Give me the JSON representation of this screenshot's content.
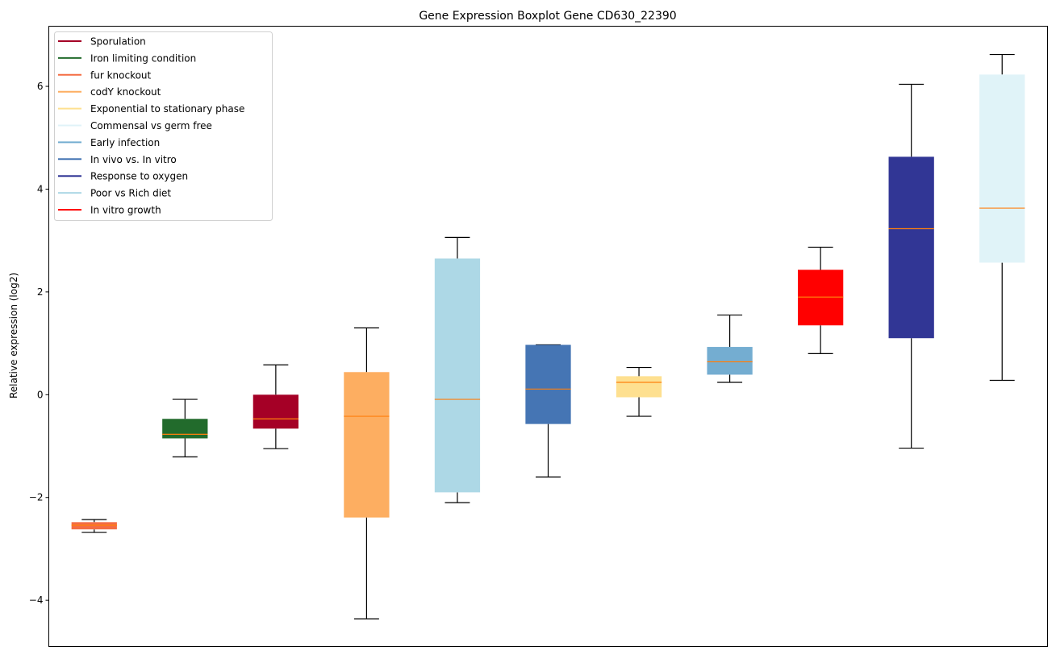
{
  "chart_data": {
    "type": "boxplot",
    "title": "Gene Expression Boxplot Gene CD630_22390",
    "xlabel": "",
    "ylabel": "Relative expression (log2)",
    "ylim": [
      -4.9,
      7.17
    ],
    "yticks": [
      -4,
      -2,
      0,
      2,
      4,
      6
    ],
    "ytick_labels": [
      "−4",
      "−2",
      "0",
      "2",
      "4",
      "6"
    ],
    "grid": false,
    "legend_position": "top-left",
    "median_color": "#ff7f0e",
    "legend": [
      {
        "label": "Sporulation",
        "color": "#a50026"
      },
      {
        "label": "Iron limiting condition",
        "color": "#226b2c"
      },
      {
        "label": "fur knockout",
        "color": "#f46d43"
      },
      {
        "label": "codY knockout",
        "color": "#fdae61"
      },
      {
        "label": "Exponential to stationary phase",
        "color": "#fee090"
      },
      {
        "label": "Commensal vs germ free",
        "color": "#e0f3f8"
      },
      {
        "label": "Early infection",
        "color": "#74add1"
      },
      {
        "label": "In vivo vs. In vitro",
        "color": "#4575b4"
      },
      {
        "label": "Response to oxygen",
        "color": "#313695"
      },
      {
        "label": "Poor vs Rich diet",
        "color": "#add8e6"
      },
      {
        "label": "In vitro growth",
        "color": "#ff0000"
      }
    ],
    "boxes": [
      {
        "condition": "fur knockout",
        "color": "#f46d43",
        "whisker_low": -2.68,
        "q1": -2.62,
        "median": -2.54,
        "q3": -2.48,
        "whisker_high": -2.43
      },
      {
        "condition": "Iron limiting condition",
        "color": "#226b2c",
        "whisker_low": -1.21,
        "q1": -0.85,
        "median": -0.77,
        "q3": -0.47,
        "whisker_high": -0.09
      },
      {
        "condition": "Sporulation",
        "color": "#a50026",
        "whisker_low": -1.05,
        "q1": -0.66,
        "median": -0.47,
        "q3": 0.0,
        "whisker_high": 0.58
      },
      {
        "condition": "codY knockout",
        "color": "#fdae61",
        "whisker_low": -4.36,
        "q1": -2.39,
        "median": -0.42,
        "q3": 0.44,
        "whisker_high": 1.3
      },
      {
        "condition": "Poor vs Rich diet",
        "color": "#add8e6",
        "whisker_low": -2.1,
        "q1": -1.9,
        "median": -0.09,
        "q3": 2.65,
        "whisker_high": 3.06
      },
      {
        "condition": "In vivo vs. In vitro",
        "color": "#4575b4",
        "whisker_low": -1.6,
        "q1": -0.57,
        "median": 0.11,
        "q3": 0.97,
        "whisker_high": 0.97
      },
      {
        "condition": "Exponential to stationary phase",
        "color": "#fee090",
        "whisker_low": -0.42,
        "q1": -0.05,
        "median": 0.24,
        "q3": 0.36,
        "whisker_high": 0.53
      },
      {
        "condition": "Early infection",
        "color": "#74add1",
        "whisker_low": 0.24,
        "q1": 0.39,
        "median": 0.64,
        "q3": 0.93,
        "whisker_high": 1.55
      },
      {
        "condition": "In vitro growth",
        "color": "#ff0000",
        "whisker_low": 0.8,
        "q1": 1.35,
        "median": 1.9,
        "q3": 2.43,
        "whisker_high": 2.87
      },
      {
        "condition": "Response to oxygen",
        "color": "#313695",
        "whisker_low": -1.04,
        "q1": 1.1,
        "median": 3.23,
        "q3": 4.63,
        "whisker_high": 6.04
      },
      {
        "condition": "Commensal vs germ free",
        "color": "#e0f3f8",
        "whisker_low": 0.28,
        "q1": 2.57,
        "median": 3.63,
        "q3": 6.23,
        "whisker_high": 6.62
      }
    ]
  }
}
